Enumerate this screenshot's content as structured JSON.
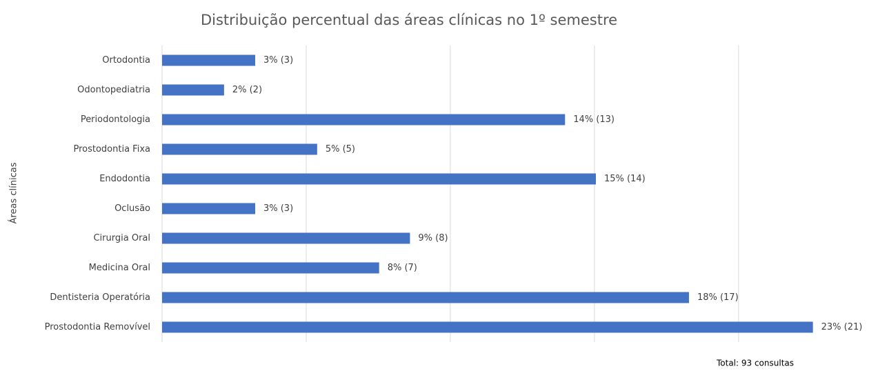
{
  "chart_data": {
    "type": "bar",
    "orientation": "horizontal",
    "title": "Distribuição percentual das áreas clínicas no 1º semestre",
    "y_label": "Áreas clínicas",
    "note": "Total: 93 consultas",
    "categories": [
      "Ortodontia",
      "Odontopediatria",
      "Periodontologia",
      "Prostodontia Fixa",
      "Endodontia",
      "Oclusão",
      "Cirurgia Oral",
      "Medicina Oral",
      "Dentisteria Operatória",
      "Prostodontia Removível"
    ],
    "values": [
      3.23,
      2.15,
      13.98,
      5.38,
      15.05,
      3.23,
      8.6,
      7.53,
      18.28,
      22.58
    ],
    "value_labels": [
      "3% (3)",
      "2% (2)",
      "14% (13)",
      "5% (5)",
      "15% (14)",
      "3% (3)",
      "9% (8)",
      "8% (7)",
      "18% (17)",
      "23% (21)"
    ],
    "color": "#4472c4",
    "xlim": [
      0,
      24
    ],
    "xticks": [
      0,
      5,
      10,
      15,
      20
    ],
    "grid": true
  }
}
